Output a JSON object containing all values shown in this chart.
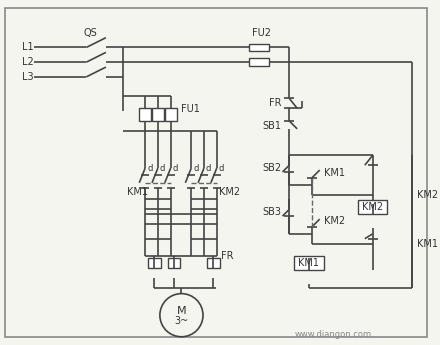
{
  "background_color": "#f5f5f0",
  "line_color": "#444444",
  "text_color": "#333333",
  "dashed_color": "#666666",
  "watermark": "www.diangon.com",
  "labels": {
    "QS": "QS",
    "FU1": "FU1",
    "FU2": "FU2",
    "FR": "FR",
    "L1": "L1",
    "L2": "L2",
    "L3": "L3",
    "KM1": "KM1",
    "KM2": "KM2",
    "SB1": "SB1",
    "SB2": "SB2",
    "SB3": "SB3",
    "M": "M",
    "three": "3~"
  }
}
